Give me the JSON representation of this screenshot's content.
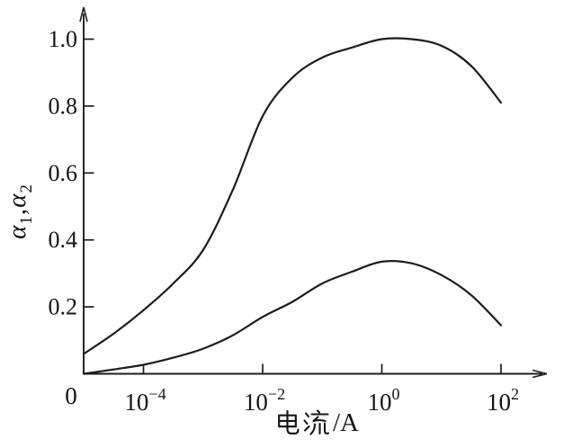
{
  "figure": {
    "background": "#ffffff",
    "line_color": "#1c1c1c"
  },
  "axes": {
    "ylabel": {
      "alpha1": "α",
      "sub1": "1",
      "comma": ",",
      "alpha2": "α",
      "sub2": "2"
    },
    "ylabel_text": "α1,α2",
    "xlabel": "电流/A",
    "xlabel_cjk": "电流",
    "xlabel_suffix": "/A",
    "origin_label": "0",
    "y_ticks": [
      {
        "value": 1.0,
        "label": "1.0"
      },
      {
        "value": 0.8,
        "label": "0.8"
      },
      {
        "value": 0.6,
        "label": "0.6"
      },
      {
        "value": 0.4,
        "label": "0.4"
      },
      {
        "value": 0.2,
        "label": "0.2"
      }
    ],
    "x_ticks": [
      {
        "log": -4,
        "base": "10",
        "exp": "−4"
      },
      {
        "log": -2,
        "base": "10",
        "exp": "−2"
      },
      {
        "log": 0,
        "base": "10",
        "exp": "0"
      },
      {
        "log": 2,
        "base": "10",
        "exp": "2"
      }
    ]
  },
  "chart_data": {
    "type": "line",
    "title": "",
    "xlabel": "电流/A",
    "ylabel": "α1, α2",
    "x_scale": "log10",
    "x_tick_values_A": [
      0.0001,
      0.01,
      1,
      100
    ],
    "ylim": [
      0,
      1.05
    ],
    "x_axis_note": "origin labeled 0; curves start at left axis (current → 0), x from 1e-5 A grid to 1e2 A",
    "x_log10": [
      -5,
      -4.5,
      -4,
      -3.5,
      -3,
      -2.5,
      -2,
      -1.5,
      -1,
      -0.5,
      0,
      0.5,
      1,
      1.5,
      2
    ],
    "series": [
      {
        "name": "alpha1_upper",
        "values": [
          0.06,
          0.12,
          0.19,
          0.27,
          0.37,
          0.55,
          0.77,
          0.885,
          0.945,
          0.975,
          1.0,
          1.0,
          0.98,
          0.92,
          0.81
        ]
      },
      {
        "name": "alpha2_lower",
        "values": [
          0.0,
          0.013,
          0.027,
          0.048,
          0.075,
          0.115,
          0.17,
          0.215,
          0.27,
          0.305,
          0.335,
          0.33,
          0.295,
          0.235,
          0.145
        ]
      }
    ],
    "legend": "none",
    "grid": false
  }
}
